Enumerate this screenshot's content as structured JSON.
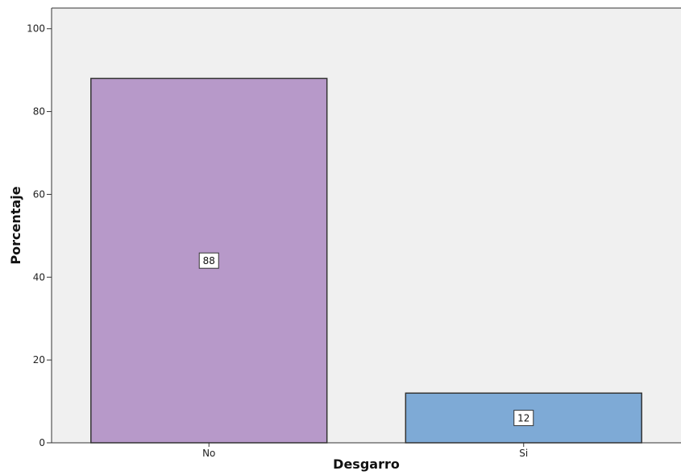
{
  "chart_data": {
    "type": "bar",
    "title": "",
    "xlabel": "Desgarro",
    "ylabel": "Porcentaje",
    "categories": [
      "No",
      "Si"
    ],
    "values": [
      88,
      12
    ],
    "data_labels": [
      "88",
      "12"
    ],
    "ylim": [
      0,
      105
    ],
    "yticks": [
      0,
      20,
      40,
      60,
      80,
      100
    ],
    "grid": false,
    "legend": "none",
    "colors": {
      "plot_background": "#f0f0f0",
      "bars": [
        "#b799c9",
        "#7eaad6"
      ],
      "bar_outline": "#333333",
      "axis": "#333333"
    }
  }
}
